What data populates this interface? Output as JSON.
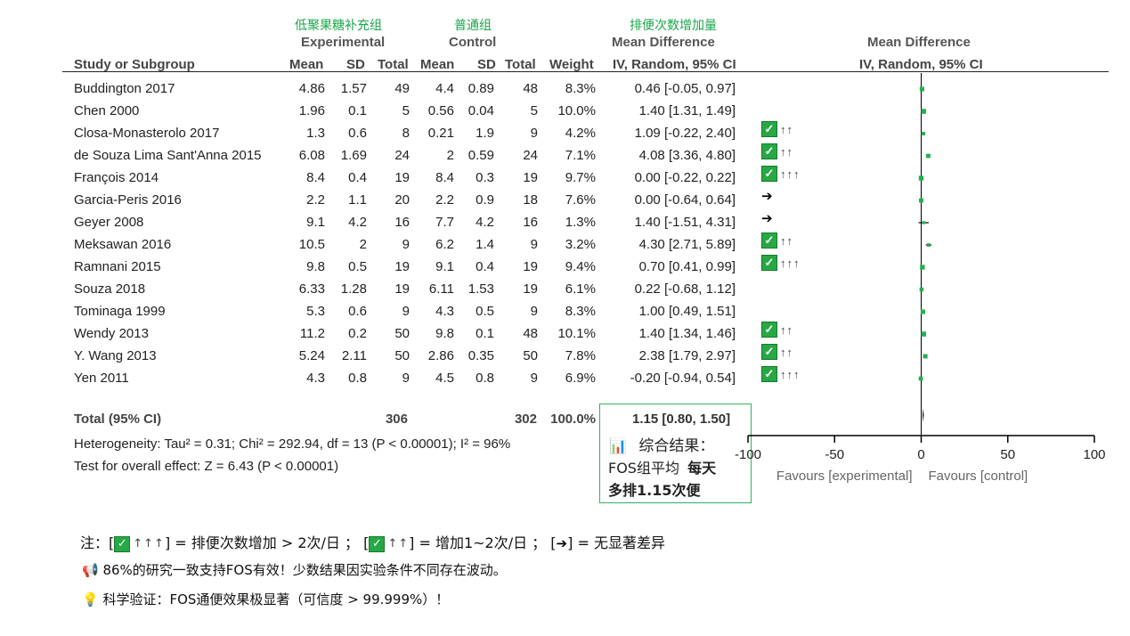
{
  "headers": {
    "exp_cn": "低聚果糖补充组",
    "ctrl_cn": "普通组",
    "md_cn": "排便次数增加量",
    "experimental": "Experimental",
    "control": "Control",
    "mean_difference": "Mean Difference",
    "mean_difference_plot": "Mean Difference",
    "study": "Study or Subgroup",
    "mean1": "Mean",
    "sd1": "SD",
    "total1": "Total",
    "mean2": "Mean",
    "sd2": "SD",
    "total2": "Total",
    "weight": "Weight",
    "method": "IV, Random, 95% CI",
    "method_plot": "IV, Random, 95% CI"
  },
  "studies": [
    {
      "name": "Buddington 2017",
      "m1": "4.86",
      "sd1": "1.57",
      "n1": "49",
      "m2": "4.4",
      "sd2": "0.89",
      "n2": "48",
      "w": "8.3%",
      "ci": "0.46 [-0.05, 0.97]",
      "badge": "",
      "arrows": ""
    },
    {
      "name": "Chen 2000",
      "m1": "1.96",
      "sd1": "0.1",
      "n1": "5",
      "m2": "0.56",
      "sd2": "0.04",
      "n2": "5",
      "w": "10.0%",
      "ci": "1.40 [1.31, 1.49]",
      "badge": "✓",
      "arrows": "↑↑"
    },
    {
      "name": "Closa-Monasterolo 2017",
      "m1": "1.3",
      "sd1": "0.6",
      "n1": "8",
      "m2": "0.21",
      "sd2": "1.9",
      "n2": "9",
      "w": "4.2%",
      "ci": "1.09 [-0.22, 2.40]",
      "badge": "✓",
      "arrows": "↑↑"
    },
    {
      "name": "de Souza Lima Sant'Anna 2015",
      "m1": "6.08",
      "sd1": "1.69",
      "n1": "24",
      "m2": "2",
      "sd2": "0.59",
      "n2": "24",
      "w": "7.1%",
      "ci": "4.08 [3.36, 4.80]",
      "badge": "✓",
      "arrows": "↑↑↑"
    },
    {
      "name": "François 2014",
      "m1": "8.4",
      "sd1": "0.4",
      "n1": "19",
      "m2": "8.4",
      "sd2": "0.3",
      "n2": "19",
      "w": "9.7%",
      "ci": "0.00 [-0.22, 0.22]",
      "badge": "",
      "arrows": "➔"
    },
    {
      "name": "Garcia-Peris 2016",
      "m1": "2.2",
      "sd1": "1.1",
      "n1": "20",
      "m2": "2.2",
      "sd2": "0.9",
      "n2": "18",
      "w": "7.6%",
      "ci": "0.00 [-0.64, 0.64]",
      "badge": "",
      "arrows": "➔"
    },
    {
      "name": "Geyer 2008",
      "m1": "9.1",
      "sd1": "4.2",
      "n1": "16",
      "m2": "7.7",
      "sd2": "4.2",
      "n2": "16",
      "w": "1.3%",
      "ci": "1.40 [-1.51, 4.31]",
      "badge": "✓",
      "arrows": "↑↑"
    },
    {
      "name": "Meksawan 2016",
      "m1": "10.5",
      "sd1": "2",
      "n1": "9",
      "m2": "6.2",
      "sd2": "1.4",
      "n2": "9",
      "w": "3.2%",
      "ci": "4.30 [2.71, 5.89]",
      "badge": "✓",
      "arrows": "↑↑↑"
    },
    {
      "name": "Ramnani 2015",
      "m1": "9.8",
      "sd1": "0.5",
      "n1": "19",
      "m2": "9.1",
      "sd2": "0.4",
      "n2": "19",
      "w": "9.4%",
      "ci": "0.70 [0.41, 0.99]",
      "badge": "",
      "arrows": ""
    },
    {
      "name": "Souza 2018",
      "m1": "6.33",
      "sd1": "1.28",
      "n1": "19",
      "m2": "6.11",
      "sd2": "1.53",
      "n2": "19",
      "w": "6.1%",
      "ci": "0.22 [-0.68, 1.12]",
      "badge": "",
      "arrows": ""
    },
    {
      "name": "Tominaga 1999",
      "m1": "5.3",
      "sd1": "0.6",
      "n1": "9",
      "m2": "4.3",
      "sd2": "0.5",
      "n2": "9",
      "w": "8.3%",
      "ci": "1.00 [0.49, 1.51]",
      "badge": "✓",
      "arrows": "↑↑"
    },
    {
      "name": "Wendy 2013",
      "m1": "11.2",
      "sd1": "0.2",
      "n1": "50",
      "m2": "9.8",
      "sd2": "0.1",
      "n2": "48",
      "w": "10.1%",
      "ci": "1.40 [1.34, 1.46]",
      "badge": "✓",
      "arrows": "↑↑"
    },
    {
      "name": "Y. Wang 2013",
      "m1": "5.24",
      "sd1": "2.11",
      "n1": "50",
      "m2": "2.86",
      "sd2": "0.35",
      "n2": "50",
      "w": "7.8%",
      "ci": "2.38 [1.79, 2.97]",
      "badge": "✓",
      "arrows": "↑↑↑"
    },
    {
      "name": "Yen 2011",
      "m1": "4.3",
      "sd1": "0.8",
      "n1": "9",
      "m2": "4.5",
      "sd2": "0.8",
      "n2": "9",
      "w": "6.9%",
      "ci": "-0.20 [-0.94, 0.54]",
      "badge": "",
      "arrows": ""
    }
  ],
  "total": {
    "label": "Total (95% CI)",
    "n1": "306",
    "n2": "302",
    "w": "100.0%",
    "ci": "1.15 [0.80, 1.50]"
  },
  "heterogeneity": "Heterogeneity: Tau² = 0.31; Chi² = 292.94, df = 13 (P < 0.00001); I² = 96%",
  "overall_effect": "Test for overall effect: Z = 6.43 (P < 0.00001)",
  "summary_box": {
    "icon": "📊",
    "line1": "综合结果：",
    "line2a": "FOS组平均",
    "line2b": "每天",
    "line3": "多排1.15次便"
  },
  "chart_data": {
    "type": "forest",
    "axis": {
      "ticks": [
        -100,
        -50,
        0,
        50,
        100
      ],
      "tick_labels": [
        "-100",
        "-50",
        "0",
        "50",
        "100"
      ],
      "xlim": [
        -100,
        100
      ]
    },
    "favours_left": "Favours [experimental]",
    "favours_right": "Favours [control]",
    "estimates": [
      {
        "study": "Buddington 2017",
        "md": 0.46,
        "lo": -0.05,
        "hi": 0.97,
        "weight": 8.3
      },
      {
        "study": "Chen 2000",
        "md": 1.4,
        "lo": 1.31,
        "hi": 1.49,
        "weight": 10.0
      },
      {
        "study": "Closa-Monasterolo 2017",
        "md": 1.09,
        "lo": -0.22,
        "hi": 2.4,
        "weight": 4.2
      },
      {
        "study": "de Souza Lima Sant'Anna 2015",
        "md": 4.08,
        "lo": 3.36,
        "hi": 4.8,
        "weight": 7.1
      },
      {
        "study": "François 2014",
        "md": 0.0,
        "lo": -0.22,
        "hi": 0.22,
        "weight": 9.7
      },
      {
        "study": "Garcia-Peris 2016",
        "md": 0.0,
        "lo": -0.64,
        "hi": 0.64,
        "weight": 7.6
      },
      {
        "study": "Geyer 2008",
        "md": 1.4,
        "lo": -1.51,
        "hi": 4.31,
        "weight": 1.3
      },
      {
        "study": "Meksawan 2016",
        "md": 4.3,
        "lo": 2.71,
        "hi": 5.89,
        "weight": 3.2
      },
      {
        "study": "Ramnani 2015",
        "md": 0.7,
        "lo": 0.41,
        "hi": 0.99,
        "weight": 9.4
      },
      {
        "study": "Souza 2018",
        "md": 0.22,
        "lo": -0.68,
        "hi": 1.12,
        "weight": 6.1
      },
      {
        "study": "Tominaga 1999",
        "md": 1.0,
        "lo": 0.49,
        "hi": 1.51,
        "weight": 8.3
      },
      {
        "study": "Wendy 2013",
        "md": 1.4,
        "lo": 1.34,
        "hi": 1.46,
        "weight": 10.1
      },
      {
        "study": "Y. Wang 2013",
        "md": 2.38,
        "lo": 1.79,
        "hi": 2.97,
        "weight": 7.8
      },
      {
        "study": "Yen 2011",
        "md": -0.2,
        "lo": -0.94,
        "hi": 0.54,
        "weight": 6.9
      }
    ],
    "pooled": {
      "md": 1.15,
      "lo": 0.8,
      "hi": 1.5
    },
    "colors": {
      "square": "#22b14c",
      "line": "#000000"
    }
  },
  "notes": {
    "note_prefix": "注：",
    "note_part1": "= 排便次数增加 > 2次/日 ；",
    "note_part2": "= 增加1~2次/日 ；",
    "note_part3": "= 无显著差异",
    "badge_glyph": "✓",
    "arrows3": "↑↑↑",
    "arrows2": "↑↑",
    "arrow_right": "➔",
    "line2_icon": "📢",
    "line2": "86%的研究一致支持FOS有效！少数结果因实验条件不同存在波动。",
    "line3_icon": "💡",
    "line3": "科学验证：FOS通便效果极显著（可信度 > 99.999%）！"
  }
}
